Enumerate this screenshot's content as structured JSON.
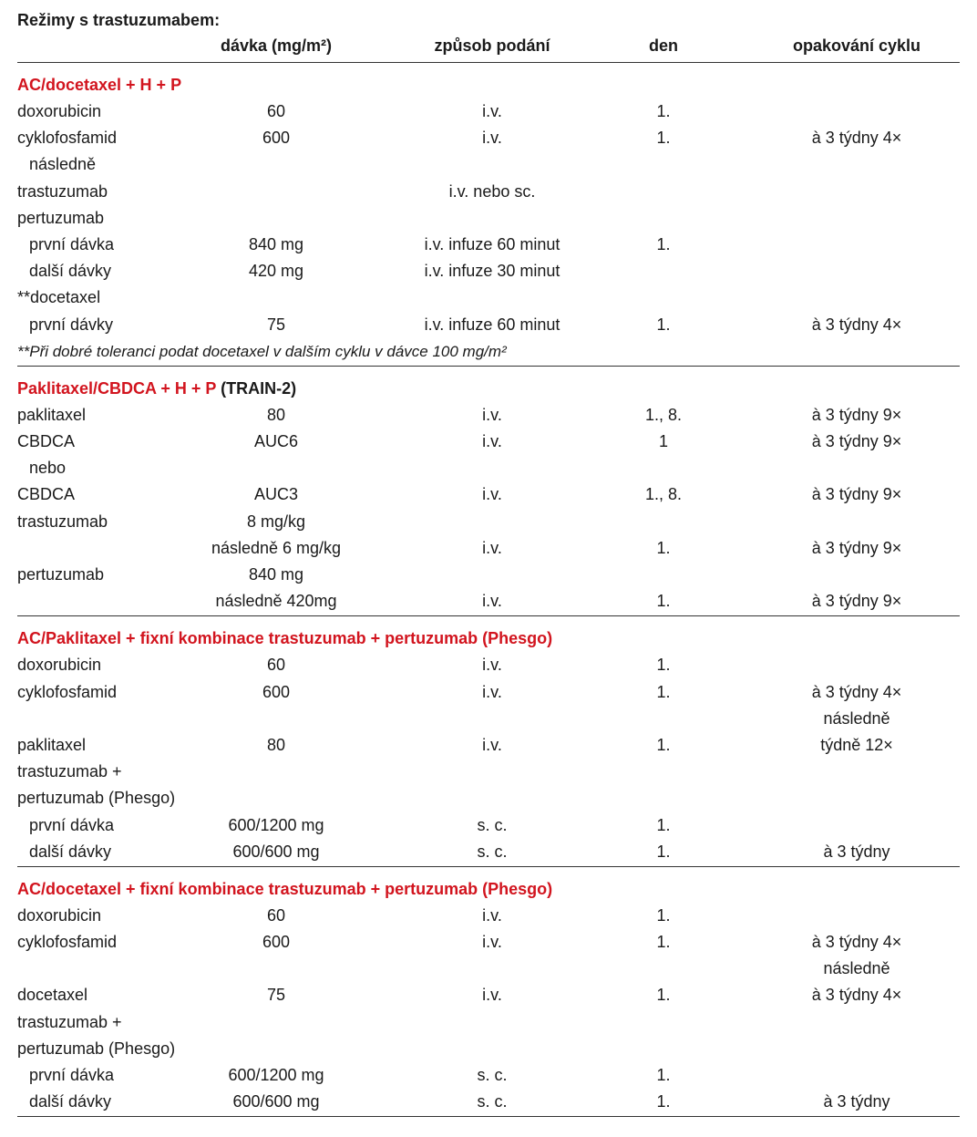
{
  "title": "Režimy s trastuzumabem:",
  "columns": [
    "",
    "dávka (mg/m²)",
    "způsob podání",
    "den",
    "opakování cyklu"
  ],
  "colors": {
    "heading": "#d2141e",
    "text": "#1a1a1a",
    "rule": "#333333"
  },
  "sections": [
    {
      "heading": "AC/docetaxel + H + P",
      "heading_suffix": "",
      "rows": [
        {
          "name": "doxorubicin",
          "dose": "60",
          "route": "i.v.",
          "day": "1.",
          "repeat": ""
        },
        {
          "name": "cyklofosfamid",
          "dose": "600",
          "route": "i.v.",
          "day": "1.",
          "repeat": "à 3 týdny 4×"
        },
        {
          "name": "následně",
          "indent": true,
          "dose": "",
          "route": "",
          "day": "",
          "repeat": ""
        },
        {
          "name": "trastuzumab",
          "dose": "",
          "route": "i.v. nebo sc.",
          "day": "",
          "repeat": ""
        },
        {
          "name": "pertuzumab",
          "dose": "",
          "route": "",
          "day": "",
          "repeat": ""
        },
        {
          "name": "první dávka",
          "indent": true,
          "dose": "840 mg",
          "route": "i.v. infuze 60 minut",
          "day": "1.",
          "repeat": ""
        },
        {
          "name": "další dávky",
          "indent": true,
          "dose": "420 mg",
          "route": "i.v. infuze 30 minut",
          "day": "",
          "repeat": ""
        },
        {
          "name": "**docetaxel",
          "dose": "",
          "route": "",
          "day": "",
          "repeat": ""
        },
        {
          "name": "první dávky",
          "indent": true,
          "dose": "75",
          "route": "i.v. infuze 60 minut",
          "day": "1.",
          "repeat": "à 3 týdny 4×"
        }
      ],
      "note": "**Při dobré toleranci podat docetaxel v dalším cyklu v dávce 100 mg/m²"
    },
    {
      "heading": "Paklitaxel/CBDCA + H + P",
      "heading_suffix": "(TRAIN-2)",
      "rows": [
        {
          "name": "paklitaxel",
          "dose": "80",
          "route": "i.v.",
          "day": "1., 8.",
          "repeat": "à 3 týdny 9×"
        },
        {
          "name": "CBDCA",
          "dose": "AUC6",
          "route": "i.v.",
          "day": "1",
          "repeat": "à 3 týdny 9×"
        },
        {
          "name": "nebo",
          "indent": true,
          "dose": "",
          "route": "",
          "day": "",
          "repeat": ""
        },
        {
          "name": "CBDCA",
          "dose": "AUC3",
          "route": "i.v.",
          "day": "1., 8.",
          "repeat": "à 3 týdny 9×"
        },
        {
          "name": "trastuzumab",
          "dose": "8 mg/kg",
          "route": "",
          "day": "",
          "repeat": ""
        },
        {
          "name": "",
          "dose": "následně 6 mg/kg",
          "route": "i.v.",
          "day": "1.",
          "repeat": "à 3 týdny 9×"
        },
        {
          "name": "pertuzumab",
          "dose": "840 mg",
          "route": "",
          "day": "",
          "repeat": ""
        },
        {
          "name": "",
          "dose": "následně 420mg",
          "route": "i.v.",
          "day": "1.",
          "repeat": "à 3 týdny 9×"
        }
      ]
    },
    {
      "heading": "AC/Paklitaxel + fixní kombinace trastuzumab + pertuzumab (Phesgo)",
      "heading_suffix": "",
      "rows": [
        {
          "name": "doxorubicin",
          "dose": "60",
          "route": "i.v.",
          "day": "1.",
          "repeat": ""
        },
        {
          "name": "cyklofosfamid",
          "dose": "600",
          "route": "i.v.",
          "day": "1.",
          "repeat": "à 3 týdny 4×"
        },
        {
          "name": "",
          "dose": "",
          "route": "",
          "day": "",
          "repeat": "následně"
        },
        {
          "name": "paklitaxel",
          "dose": "80",
          "route": "i.v.",
          "day": "1.",
          "repeat": "týdně 12×"
        },
        {
          "name": "trastuzumab +",
          "dose": "",
          "route": "",
          "day": "",
          "repeat": ""
        },
        {
          "name": "pertuzumab (Phesgo)",
          "dose": "",
          "route": "",
          "day": "",
          "repeat": ""
        },
        {
          "name": "první dávka",
          "indent": true,
          "dose": "600/1200 mg",
          "route": "s. c.",
          "day": "1.",
          "repeat": ""
        },
        {
          "name": "další dávky",
          "indent": true,
          "dose": "600/600 mg",
          "route": "s. c.",
          "day": "1.",
          "repeat": "à 3 týdny"
        }
      ]
    },
    {
      "heading": "AC/docetaxel + fixní kombinace trastuzumab + pertuzumab (Phesgo)",
      "heading_suffix": "",
      "rows": [
        {
          "name": "doxorubicin",
          "dose": "60",
          "route": "i.v.",
          "day": "1.",
          "repeat": ""
        },
        {
          "name": "cyklofosfamid",
          "dose": "600",
          "route": "i.v.",
          "day": "1.",
          "repeat": "à 3 týdny 4×"
        },
        {
          "name": "",
          "dose": "",
          "route": "",
          "day": "",
          "repeat": "následně"
        },
        {
          "name": "docetaxel",
          "dose": "75",
          "route": "i.v.",
          "day": "1.",
          "repeat": "à 3 týdny 4×"
        },
        {
          "name": "trastuzumab +",
          "dose": "",
          "route": "",
          "day": "",
          "repeat": ""
        },
        {
          "name": "pertuzumab (Phesgo)",
          "dose": "",
          "route": "",
          "day": "",
          "repeat": ""
        },
        {
          "name": "první dávka",
          "indent": true,
          "dose": "600/1200 mg",
          "route": "s. c.",
          "day": "1.",
          "repeat": ""
        },
        {
          "name": "další dávky",
          "indent": true,
          "dose": "600/600 mg",
          "route": "s. c.",
          "day": "1.",
          "repeat": "à 3 týdny"
        }
      ]
    }
  ]
}
